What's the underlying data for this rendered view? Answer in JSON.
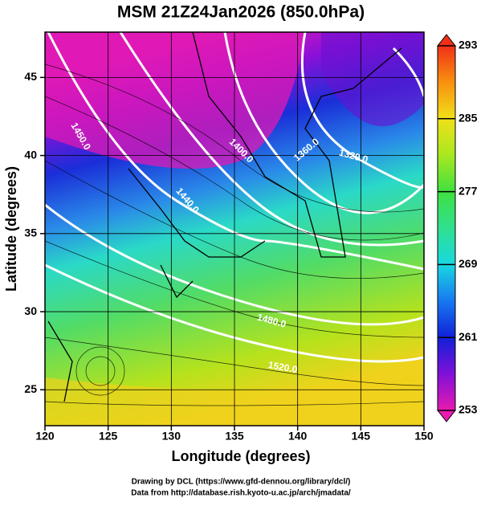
{
  "title": "MSM 21Z24Jan2026 (850.0hPa)",
  "chart_data": {
    "type": "map",
    "xlabel": "Longitude (degrees)",
    "ylabel": "Latitude  (degrees)",
    "xlim": [
      120,
      150
    ],
    "ylim": [
      22.7,
      47.9
    ],
    "xticks": [
      120,
      125,
      130,
      135,
      140,
      145,
      150
    ],
    "yticks": [
      25,
      30,
      35,
      40,
      45
    ],
    "grid": true,
    "colorbar": {
      "lim": [
        253,
        293
      ],
      "ticks": [
        253,
        261,
        269,
        277,
        285,
        293
      ]
    },
    "contour_labels": [
      "1320.0",
      "1360.0",
      "1400.0",
      "1440.0",
      "1450.0",
      "1480.0",
      "1520.0"
    ]
  },
  "footer": [
    "Drawing by DCL (https://www.gfd-dennou.org/library/dcl/)",
    "Data from http://database.rish.kyoto-u.ac.jp/arch/jmadata/"
  ]
}
